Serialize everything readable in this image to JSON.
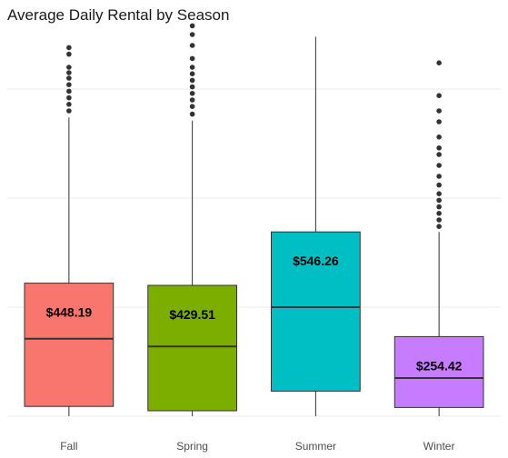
{
  "chart_data": {
    "type": "boxplot",
    "title": "Average Daily Rental by Season",
    "xlabel": "",
    "ylabel": "",
    "ylim": [
      -50,
      1750
    ],
    "gridlines": [
      0,
      500,
      1000,
      1500
    ],
    "grid": true,
    "y_tick_labels_visible": false,
    "categories": [
      "Fall",
      "Spring",
      "Summer",
      "Winter"
    ],
    "colors": [
      "#F8766D",
      "#7CAE00",
      "#00BFC4",
      "#C77CFF"
    ],
    "boxes": [
      {
        "category": "Fall",
        "whisker_low": 0,
        "q1": 45,
        "median": 355,
        "q3": 610,
        "whisker_high": 1370,
        "outliers": [
          1400,
          1430,
          1460,
          1490,
          1520,
          1550,
          1575,
          1600,
          1660,
          1690
        ],
        "mean_label": "$448.19"
      },
      {
        "category": "Spring",
        "whisker_low": 0,
        "q1": 25,
        "median": 320,
        "q3": 600,
        "whisker_high": 1355,
        "outliers": [
          1385,
          1420,
          1450,
          1480,
          1510,
          1540,
          1570,
          1600,
          1640,
          1700,
          1750,
          1790
        ],
        "mean_label": "$429.51"
      },
      {
        "category": "Summer",
        "whisker_low": 0,
        "q1": 115,
        "median": 500,
        "q3": 845,
        "whisker_high": 1740,
        "outliers": [],
        "mean_label": "$546.26"
      },
      {
        "category": "Winter",
        "whisker_low": 0,
        "q1": 40,
        "median": 175,
        "q3": 365,
        "whisker_high": 845,
        "outliers": [
          870,
          900,
          930,
          960,
          990,
          1020,
          1060,
          1100,
          1150,
          1200,
          1230,
          1280,
          1350,
          1400,
          1470,
          1620
        ],
        "mean_label": "$254.42"
      }
    ]
  }
}
